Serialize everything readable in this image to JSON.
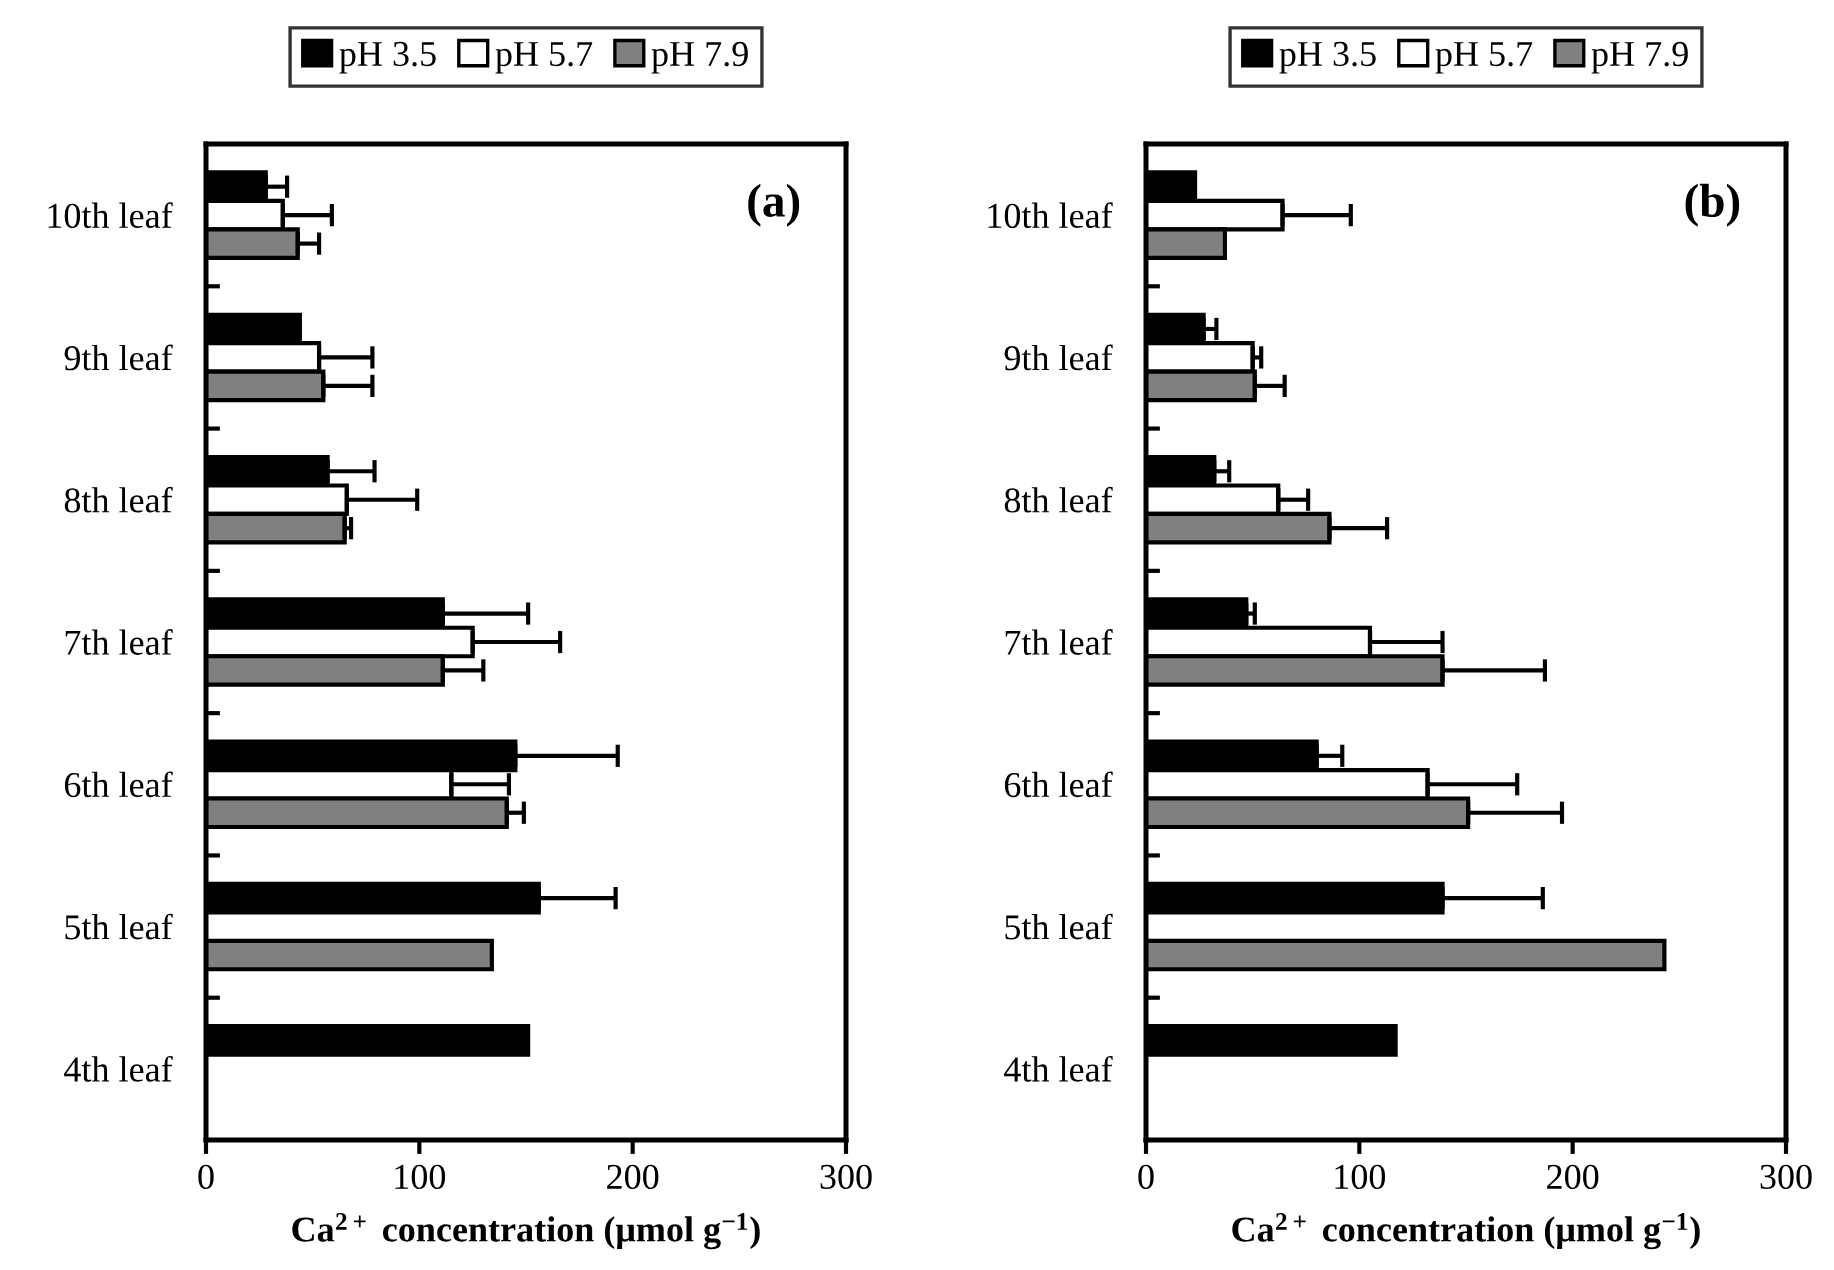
{
  "chart_data": [
    {
      "type": "bar",
      "orientation": "horizontal",
      "categories": [
        "10th leaf",
        "9th leaf",
        "8th leaf",
        "7th leaf",
        "6th leaf",
        "5th leaf",
        "4th leaf"
      ],
      "series": [
        {
          "name": "pH 3.5",
          "color": "#000000",
          "values": [
            28,
            44,
            57,
            111,
            145,
            156,
            151
          ],
          "errors": [
            10,
            null,
            22,
            40,
            48,
            36,
            null
          ]
        },
        {
          "name": "pH 5.7",
          "color": "#ffffff",
          "values": [
            36,
            53,
            66,
            125,
            115,
            null,
            null
          ],
          "errors": [
            23,
            25,
            33,
            41,
            27,
            null,
            null
          ]
        },
        {
          "name": "pH 7.9",
          "color": "#808080",
          "values": [
            43,
            55,
            65,
            111,
            141,
            134,
            null
          ],
          "errors": [
            10,
            23,
            3,
            19,
            8,
            null,
            null
          ]
        }
      ],
      "xlim": [
        0,
        300
      ],
      "xticks": [
        0,
        100,
        200,
        300
      ],
      "xlabel": "Ca$^{2+}$ concentration (μmol g$^{−1}$)",
      "annotations": [
        "(a)"
      ],
      "legend": "top",
      "grid": false
    },
    {
      "type": "bar",
      "orientation": "horizontal",
      "categories": [
        "10th leaf",
        "9th leaf",
        "8th leaf",
        "7th leaf",
        "6th leaf",
        "5th leaf",
        "4th leaf"
      ],
      "series": [
        {
          "name": "pH 3.5",
          "color": "#000000",
          "values": [
            23,
            27,
            32,
            47,
            80,
            139,
            117
          ],
          "errors": [
            null,
            6,
            7,
            4,
            12,
            47,
            null
          ]
        },
        {
          "name": "pH 5.7",
          "color": "#ffffff",
          "values": [
            64,
            50,
            62,
            105,
            132,
            null,
            null
          ],
          "errors": [
            32,
            4,
            14,
            34,
            42,
            null,
            null
          ]
        },
        {
          "name": "pH 7.9",
          "color": "#808080",
          "values": [
            37,
            51,
            86,
            139,
            151,
            243,
            null
          ],
          "errors": [
            null,
            14,
            27,
            48,
            44,
            null,
            null
          ]
        }
      ],
      "xlim": [
        0,
        300
      ],
      "xticks": [
        0,
        100,
        200,
        300
      ],
      "xlabel": "Ca$^{2+}$ concentration (μmol g$^{−1}$)",
      "annotations": [
        "(b)"
      ],
      "legend": "top",
      "grid": false
    }
  ]
}
